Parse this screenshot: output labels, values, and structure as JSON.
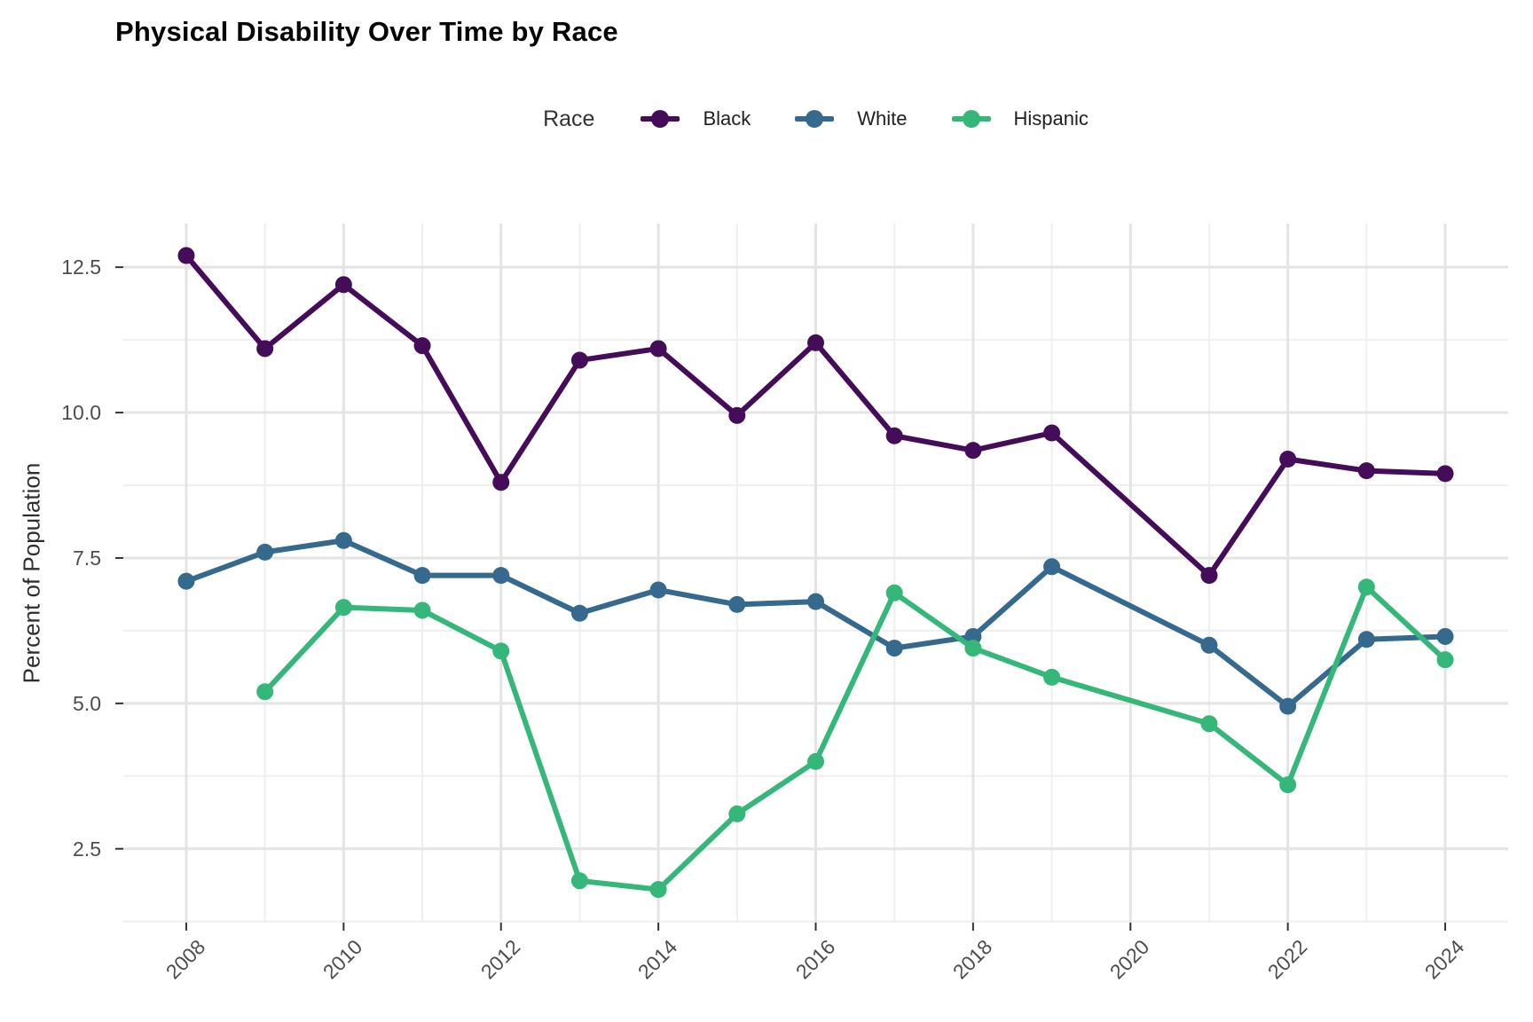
{
  "title": "Physical Disability Over Time by Race",
  "legend": {
    "title": "Race",
    "items": [
      {
        "label": "Black",
        "color": "#450d59"
      },
      {
        "label": "White",
        "color": "#35698e"
      },
      {
        "label": "Hispanic",
        "color": "#35b779"
      }
    ]
  },
  "y_axis": {
    "title": "Percent of Population",
    "ticks": [
      12.5,
      10.0,
      7.5,
      5.0,
      2.5
    ],
    "tick_labels": [
      "12.5",
      "10.0",
      "7.5",
      "5.0",
      "2.5"
    ],
    "minor_ticks": [
      11.25,
      8.75,
      6.25,
      3.75,
      1.25
    ]
  },
  "x_axis": {
    "ticks": [
      2008,
      2010,
      2012,
      2014,
      2016,
      2018,
      2020,
      2022,
      2024
    ],
    "tick_labels": [
      "2008",
      "2010",
      "2012",
      "2014",
      "2016",
      "2018",
      "2020",
      "2022",
      "2024"
    ],
    "minor_ticks": [
      2009,
      2011,
      2013,
      2015,
      2017,
      2019,
      2021,
      2023
    ]
  },
  "chart_data": {
    "type": "line",
    "title": "Physical Disability Over Time by Race",
    "xlabel": "",
    "ylabel": "Percent of Population",
    "x": [
      2008,
      2009,
      2010,
      2011,
      2012,
      2013,
      2014,
      2015,
      2016,
      2017,
      2018,
      2019,
      2020,
      2021,
      2022,
      2023,
      2024
    ],
    "series": [
      {
        "name": "Black",
        "color": "#450d59",
        "values": [
          12.7,
          11.1,
          12.2,
          11.15,
          8.8,
          10.9,
          11.1,
          9.95,
          11.2,
          9.6,
          9.35,
          9.65,
          null,
          7.2,
          9.2,
          9.0,
          8.95
        ]
      },
      {
        "name": "White",
        "color": "#35698e",
        "values": [
          7.1,
          7.6,
          7.8,
          7.2,
          7.2,
          6.55,
          6.95,
          6.7,
          6.75,
          5.95,
          6.15,
          7.35,
          null,
          6.0,
          4.95,
          6.1,
          6.15
        ]
      },
      {
        "name": "Hispanic",
        "color": "#35b779",
        "values": [
          null,
          5.2,
          6.65,
          6.6,
          5.9,
          1.95,
          1.8,
          3.1,
          4.0,
          6.9,
          5.95,
          5.45,
          null,
          4.65,
          3.6,
          7.0,
          5.75
        ]
      }
    ],
    "note_missing_year": "2020 has no data points; lines connect 2019 to 2021",
    "xlim": [
      2007.2,
      2024.8
    ],
    "ylim": [
      1.23,
      13.25
    ],
    "grid": true,
    "legend_position": "top"
  },
  "style": {
    "grid_major_color": "#e4e4e4",
    "grid_minor_color": "#efefef",
    "tick_color": "#333333",
    "background": "#ffffff"
  }
}
